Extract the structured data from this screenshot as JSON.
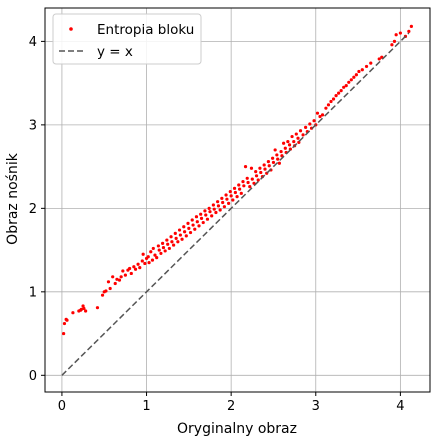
{
  "chart_data": {
    "type": "scatter",
    "xlabel": "Oryginalny obraz",
    "ylabel": "Obraz nośnik",
    "xlim": [
      -0.2,
      4.35
    ],
    "ylim": [
      -0.2,
      4.4
    ],
    "x_ticks": [
      0,
      1,
      2,
      3,
      4
    ],
    "y_ticks": [
      0,
      1,
      2,
      3,
      4
    ],
    "x_tick_labels": [
      "0",
      "1",
      "2",
      "3",
      "4"
    ],
    "y_tick_labels": [
      "0",
      "1",
      "2",
      "3",
      "4"
    ],
    "grid": true,
    "legend_position": "top-left",
    "series": [
      {
        "name": "Entropia bloku",
        "kind": "points",
        "color": "#ff0000",
        "points": [
          [
            0.02,
            0.5
          ],
          [
            0.03,
            0.62
          ],
          [
            0.05,
            0.67
          ],
          [
            0.06,
            0.66
          ],
          [
            0.13,
            0.75
          ],
          [
            0.2,
            0.77
          ],
          [
            0.22,
            0.78
          ],
          [
            0.23,
            0.79
          ],
          [
            0.25,
            0.83
          ],
          [
            0.26,
            0.8
          ],
          [
            0.28,
            0.77
          ],
          [
            0.42,
            0.81
          ],
          [
            0.48,
            0.96
          ],
          [
            0.5,
            1.0
          ],
          [
            0.52,
            1.01
          ],
          [
            0.55,
            1.12
          ],
          [
            0.57,
            1.04
          ],
          [
            0.6,
            1.18
          ],
          [
            0.63,
            1.1
          ],
          [
            0.65,
            1.15
          ],
          [
            0.68,
            1.14
          ],
          [
            0.7,
            1.18
          ],
          [
            0.72,
            1.25
          ],
          [
            0.75,
            1.2
          ],
          [
            0.78,
            1.26
          ],
          [
            0.8,
            1.28
          ],
          [
            0.82,
            1.22
          ],
          [
            0.85,
            1.3
          ],
          [
            0.87,
            1.27
          ],
          [
            0.9,
            1.33
          ],
          [
            0.92,
            1.29
          ],
          [
            0.95,
            1.37
          ],
          [
            0.96,
            1.45
          ],
          [
            0.98,
            1.34
          ],
          [
            1.0,
            1.4
          ],
          [
            1.02,
            1.42
          ],
          [
            1.03,
            1.35
          ],
          [
            1.05,
            1.48
          ],
          [
            1.07,
            1.38
          ],
          [
            1.08,
            1.52
          ],
          [
            1.1,
            1.44
          ],
          [
            1.12,
            1.41
          ],
          [
            1.14,
            1.55
          ],
          [
            1.15,
            1.5
          ],
          [
            1.17,
            1.46
          ],
          [
            1.19,
            1.58
          ],
          [
            1.2,
            1.53
          ],
          [
            1.22,
            1.49
          ],
          [
            1.24,
            1.62
          ],
          [
            1.25,
            1.57
          ],
          [
            1.27,
            1.52
          ],
          [
            1.29,
            1.66
          ],
          [
            1.3,
            1.6
          ],
          [
            1.32,
            1.56
          ],
          [
            1.34,
            1.7
          ],
          [
            1.35,
            1.64
          ],
          [
            1.37,
            1.6
          ],
          [
            1.39,
            1.74
          ],
          [
            1.4,
            1.68
          ],
          [
            1.42,
            1.63
          ],
          [
            1.44,
            1.78
          ],
          [
            1.45,
            1.72
          ],
          [
            1.47,
            1.67
          ],
          [
            1.49,
            1.82
          ],
          [
            1.5,
            1.76
          ],
          [
            1.52,
            1.71
          ],
          [
            1.54,
            1.86
          ],
          [
            1.55,
            1.8
          ],
          [
            1.57,
            1.75
          ],
          [
            1.59,
            1.9
          ],
          [
            1.6,
            1.84
          ],
          [
            1.62,
            1.79
          ],
          [
            1.64,
            1.93
          ],
          [
            1.65,
            1.88
          ],
          [
            1.67,
            1.83
          ],
          [
            1.69,
            1.97
          ],
          [
            1.7,
            1.92
          ],
          [
            1.72,
            1.87
          ],
          [
            1.74,
            2.0
          ],
          [
            1.75,
            1.96
          ],
          [
            1.77,
            1.91
          ],
          [
            1.79,
            2.04
          ],
          [
            1.8,
            1.99
          ],
          [
            1.82,
            1.95
          ],
          [
            1.84,
            2.08
          ],
          [
            1.85,
            2.03
          ],
          [
            1.87,
            1.98
          ],
          [
            1.89,
            2.12
          ],
          [
            1.9,
            2.07
          ],
          [
            1.92,
            2.02
          ],
          [
            1.94,
            2.16
          ],
          [
            1.95,
            2.11
          ],
          [
            1.97,
            2.06
          ],
          [
            1.99,
            2.2
          ],
          [
            2.0,
            2.15
          ],
          [
            2.02,
            2.1
          ],
          [
            2.04,
            2.24
          ],
          [
            2.05,
            2.19
          ],
          [
            2.07,
            2.14
          ],
          [
            2.09,
            2.28
          ],
          [
            2.1,
            2.23
          ],
          [
            2.12,
            2.18
          ],
          [
            2.14,
            2.32
          ],
          [
            2.15,
            2.27
          ],
          [
            2.17,
            2.5
          ],
          [
            2.19,
            2.36
          ],
          [
            2.2,
            2.31
          ],
          [
            2.22,
            2.26
          ],
          [
            2.24,
            2.48
          ],
          [
            2.25,
            2.35
          ],
          [
            2.27,
            2.3
          ],
          [
            2.29,
            2.44
          ],
          [
            2.3,
            2.39
          ],
          [
            2.32,
            2.34
          ],
          [
            2.34,
            2.48
          ],
          [
            2.35,
            2.43
          ],
          [
            2.37,
            2.38
          ],
          [
            2.39,
            2.52
          ],
          [
            2.4,
            2.47
          ],
          [
            2.42,
            2.42
          ],
          [
            2.44,
            2.56
          ],
          [
            2.45,
            2.51
          ],
          [
            2.47,
            2.46
          ],
          [
            2.49,
            2.6
          ],
          [
            2.5,
            2.55
          ],
          [
            2.52,
            2.7
          ],
          [
            2.54,
            2.64
          ],
          [
            2.55,
            2.59
          ],
          [
            2.57,
            2.54
          ],
          [
            2.59,
            2.68
          ],
          [
            2.6,
            2.63
          ],
          [
            2.62,
            2.78
          ],
          [
            2.64,
            2.72
          ],
          [
            2.65,
            2.67
          ],
          [
            2.67,
            2.8
          ],
          [
            2.69,
            2.76
          ],
          [
            2.7,
            2.71
          ],
          [
            2.72,
            2.86
          ],
          [
            2.74,
            2.8
          ],
          [
            2.75,
            2.75
          ],
          [
            2.77,
            2.89
          ],
          [
            2.79,
            2.84
          ],
          [
            2.8,
            2.79
          ],
          [
            2.82,
            2.93
          ],
          [
            2.85,
            2.88
          ],
          [
            2.88,
            2.97
          ],
          [
            2.9,
            2.92
          ],
          [
            2.93,
            3.01
          ],
          [
            2.95,
            2.96
          ],
          [
            2.98,
            3.05
          ],
          [
            3.0,
            3.0
          ],
          [
            3.02,
            3.14
          ],
          [
            3.05,
            3.1
          ],
          [
            3.08,
            3.12
          ],
          [
            3.12,
            3.2
          ],
          [
            3.15,
            3.24
          ],
          [
            3.18,
            3.28
          ],
          [
            3.21,
            3.31
          ],
          [
            3.24,
            3.35
          ],
          [
            3.27,
            3.38
          ],
          [
            3.3,
            3.41
          ],
          [
            3.33,
            3.45
          ],
          [
            3.36,
            3.47
          ],
          [
            3.39,
            3.51
          ],
          [
            3.42,
            3.54
          ],
          [
            3.45,
            3.57
          ],
          [
            3.48,
            3.6
          ],
          [
            3.51,
            3.64
          ],
          [
            3.55,
            3.66
          ],
          [
            3.6,
            3.7
          ],
          [
            3.65,
            3.74
          ],
          [
            3.75,
            3.79
          ],
          [
            3.78,
            3.81
          ],
          [
            3.9,
            3.96
          ],
          [
            3.93,
            4.0
          ],
          [
            3.95,
            4.08
          ],
          [
            4.0,
            4.1
          ],
          [
            4.06,
            4.06
          ],
          [
            4.1,
            4.12
          ],
          [
            4.13,
            4.18
          ]
        ]
      },
      {
        "name": "y = x",
        "kind": "line",
        "color": "#555555",
        "x": [
          0,
          4.1
        ],
        "y": [
          0,
          4.1
        ]
      }
    ]
  }
}
